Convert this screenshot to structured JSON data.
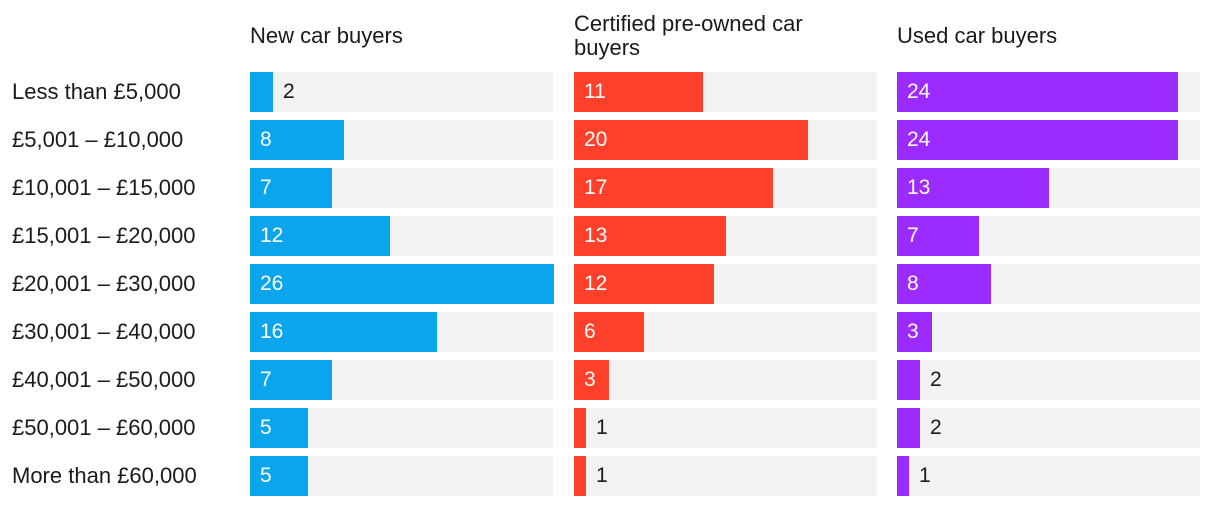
{
  "chart_data": {
    "type": "bar",
    "orientation": "horizontal",
    "layout": "small-multiples",
    "categories": [
      "Less than £5,000",
      "£5,001 – £10,000",
      "£10,001 – £15,000",
      "£15,001 – £20,000",
      "£20,001 – £30,000",
      "£30,001 – £40,000",
      "£40,001 – £50,000",
      "£50,001 – £60,000",
      "More than £60,000"
    ],
    "xlim": [
      0,
      26
    ],
    "series": [
      {
        "name": "New car buyers",
        "color": "#0aa5ec",
        "values": [
          2,
          8,
          7,
          12,
          26,
          16,
          7,
          5,
          5
        ]
      },
      {
        "name": "Certified pre-owned car buyers",
        "color": "#ff412c",
        "values": [
          11,
          20,
          17,
          13,
          12,
          6,
          3,
          1,
          1
        ]
      },
      {
        "name": "Used car buyers",
        "color": "#9b2bff",
        "values": [
          24,
          24,
          13,
          7,
          8,
          3,
          2,
          2,
          1
        ]
      }
    ]
  }
}
